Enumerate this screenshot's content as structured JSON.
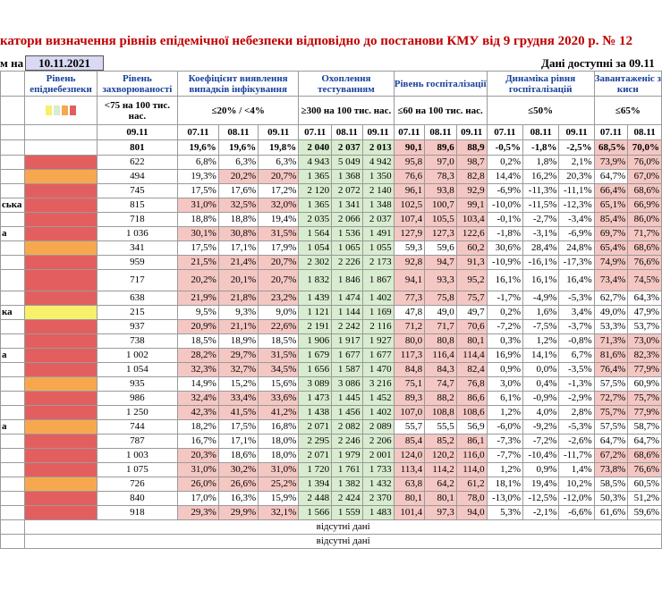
{
  "title": "катори визначення рівнів епідемічної небезпеки відповідно до постанови КМУ від 9 грудня 2020 р. № 12",
  "asof_label": "м на",
  "asof_date": "10.11.2021",
  "available_label": "Дані доступні за  09.11",
  "headers": {
    "level": "Рівень епіднебезпеки",
    "incidence": "Рівень захворюваності",
    "detection": "Коефіцієнт виявлення випадків інфікування",
    "testing": "Охоплення тестуванням",
    "hospital": "Рівень госпіталізації",
    "dynamics": "Динаміка рівня госпіталізацій",
    "load": "Завантаженіс з кисн"
  },
  "criteria": {
    "incidence": "<75 на 100 тис. нас.",
    "detection": "≤20% / <4%",
    "testing": "≥300 на 100 тис. нас.",
    "hospital": "≤60 на 100 тис. нас.",
    "dynamics": "≤50%",
    "load": "≤65%"
  },
  "dates": {
    "incidence": [
      "09.11"
    ],
    "detection": [
      "07.11",
      "08.11",
      "09.11"
    ],
    "testing": [
      "07.11",
      "08.11",
      "09.11"
    ],
    "hospital": [
      "07.11",
      "08.11",
      "09.11"
    ],
    "dynamics": [
      "07.11",
      "08.11",
      "09.11"
    ],
    "load": [
      "07.11",
      "08.11"
    ]
  },
  "colors": {
    "red": "#e35f5f",
    "orange": "#f7a84f",
    "yellow": "#f6f06a",
    "green": "#d8eccf",
    "pink": "#f4c7c3",
    "title": "#c00000",
    "header": "#17409a"
  },
  "legend_colors": [
    "yellow",
    "green",
    "orange",
    "red"
  ],
  "summary": {
    "inc": "801",
    "det": [
      "19,6%",
      "19,6%",
      "19,8%"
    ],
    "tst": [
      "2 040",
      "2 037",
      "2 013"
    ],
    "hos": [
      "90,1",
      "89,6",
      "88,9"
    ],
    "dyn": [
      "-0,5%",
      "-1,8%",
      "-2,5%"
    ],
    "lod": [
      "68,5%",
      "70,0%"
    ]
  },
  "rows": [
    {
      "name": "",
      "lvl": "red",
      "inc": "622",
      "det": [
        "6,8%",
        "6,3%",
        "6,3%"
      ],
      "tst": [
        "4 943",
        "5 049",
        "4 942"
      ],
      "hos": [
        "95,8",
        "97,0",
        "98,7"
      ],
      "dyn": [
        "0,2%",
        "1,8%",
        "2,1%"
      ],
      "lod": [
        "73,9%",
        "76,0%"
      ]
    },
    {
      "name": "",
      "lvl": "orange",
      "inc": "494",
      "det": [
        "19,3%",
        "20,2%",
        "20,7%"
      ],
      "tst": [
        "1 365",
        "1 368",
        "1 350"
      ],
      "hos": [
        "76,6",
        "78,3",
        "82,8"
      ],
      "dyn": [
        "14,4%",
        "16,2%",
        "20,3%"
      ],
      "lod": [
        "64,7%",
        "67,0%"
      ]
    },
    {
      "name": "",
      "lvl": "red",
      "inc": "745",
      "det": [
        "17,5%",
        "17,6%",
        "17,2%"
      ],
      "tst": [
        "2 120",
        "2 072",
        "2 140"
      ],
      "hos": [
        "96,1",
        "93,8",
        "92,9"
      ],
      "dyn": [
        "-6,9%",
        "-11,3%",
        "-11,1%"
      ],
      "lod": [
        "66,4%",
        "68,6%"
      ]
    },
    {
      "name": "ська",
      "lvl": "red",
      "inc": "815",
      "det": [
        "31,0%",
        "32,5%",
        "32,0%"
      ],
      "tst": [
        "1 365",
        "1 341",
        "1 348"
      ],
      "hos": [
        "102,5",
        "100,7",
        "99,1"
      ],
      "dyn": [
        "-10,0%",
        "-11,5%",
        "-12,3%"
      ],
      "lod": [
        "65,1%",
        "66,9%"
      ]
    },
    {
      "name": "",
      "lvl": "red",
      "inc": "718",
      "det": [
        "18,8%",
        "18,8%",
        "19,4%"
      ],
      "tst": [
        "2 035",
        "2 066",
        "2 037"
      ],
      "hos": [
        "107,4",
        "105,5",
        "103,4"
      ],
      "dyn": [
        "-0,1%",
        "-2,7%",
        "-3,4%"
      ],
      "lod": [
        "85,4%",
        "86,0%"
      ]
    },
    {
      "name": "а",
      "lvl": "red",
      "inc": "1 036",
      "det": [
        "30,1%",
        "30,8%",
        "31,5%"
      ],
      "tst": [
        "1 564",
        "1 536",
        "1 491"
      ],
      "hos": [
        "127,9",
        "127,3",
        "122,6"
      ],
      "dyn": [
        "-1,8%",
        "-3,1%",
        "-6,9%"
      ],
      "lod": [
        "69,7%",
        "71,7%"
      ]
    },
    {
      "name": "",
      "lvl": "orange",
      "inc": "341",
      "det": [
        "17,5%",
        "17,1%",
        "17,9%"
      ],
      "tst": [
        "1 054",
        "1 065",
        "1 055"
      ],
      "hos": [
        "59,3",
        "59,6",
        "60,2"
      ],
      "dyn": [
        "30,6%",
        "28,4%",
        "24,8%"
      ],
      "lod": [
        "65,4%",
        "68,6%"
      ]
    },
    {
      "name": "",
      "lvl": "red",
      "inc": "959",
      "det": [
        "21,5%",
        "21,4%",
        "20,7%"
      ],
      "tst": [
        "2 302",
        "2 226",
        "2 173"
      ],
      "hos": [
        "92,8",
        "94,7",
        "91,3"
      ],
      "dyn": [
        "-10,9%",
        "-16,1%",
        "-17,3%"
      ],
      "lod": [
        "74,9%",
        "76,6%"
      ]
    },
    {
      "name": "",
      "lvl": "red",
      "inc": "717",
      "det": [
        "20,2%",
        "20,1%",
        "20,7%"
      ],
      "tst": [
        "1 832",
        "1 846",
        "1 867"
      ],
      "hos": [
        "94,1",
        "93,3",
        "95,2"
      ],
      "dyn": [
        "16,1%",
        "16,1%",
        "16,4%"
      ],
      "lod": [
        "73,4%",
        "74,5%"
      ],
      "tall": true
    },
    {
      "name": "",
      "lvl": "red",
      "inc": "638",
      "det": [
        "21,9%",
        "21,8%",
        "23,2%"
      ],
      "tst": [
        "1 439",
        "1 474",
        "1 402"
      ],
      "hos": [
        "77,3",
        "75,8",
        "75,7"
      ],
      "dyn": [
        "-1,7%",
        "-4,9%",
        "-5,3%"
      ],
      "lod": [
        "62,7%",
        "64,3%"
      ]
    },
    {
      "name": "ка",
      "lvl": "yellow",
      "inc": "215",
      "det": [
        "9,5%",
        "9,3%",
        "9,0%"
      ],
      "tst": [
        "1 121",
        "1 144",
        "1 169"
      ],
      "hos": [
        "47,8",
        "49,0",
        "49,7"
      ],
      "dyn": [
        "0,2%",
        "1,6%",
        "3,4%"
      ],
      "lod": [
        "49,0%",
        "47,9%"
      ]
    },
    {
      "name": "",
      "lvl": "red",
      "inc": "937",
      "det": [
        "20,9%",
        "21,1%",
        "22,6%"
      ],
      "tst": [
        "2 191",
        "2 242",
        "2 116"
      ],
      "hos": [
        "71,2",
        "71,7",
        "70,6"
      ],
      "dyn": [
        "-7,2%",
        "-7,5%",
        "-3,7%"
      ],
      "lod": [
        "53,3%",
        "53,7%"
      ]
    },
    {
      "name": "",
      "lvl": "red",
      "inc": "738",
      "det": [
        "18,5%",
        "18,9%",
        "18,5%"
      ],
      "tst": [
        "1 906",
        "1 917",
        "1 927"
      ],
      "hos": [
        "80,0",
        "80,8",
        "80,1"
      ],
      "dyn": [
        "0,3%",
        "1,2%",
        "-0,8%"
      ],
      "lod": [
        "71,3%",
        "73,0%"
      ]
    },
    {
      "name": "а",
      "lvl": "red",
      "inc": "1 002",
      "det": [
        "28,2%",
        "29,7%",
        "31,5%"
      ],
      "tst": [
        "1 679",
        "1 677",
        "1 677"
      ],
      "hos": [
        "117,3",
        "116,4",
        "114,4"
      ],
      "dyn": [
        "16,9%",
        "14,1%",
        "6,7%"
      ],
      "lod": [
        "81,6%",
        "82,3%"
      ]
    },
    {
      "name": "",
      "lvl": "red",
      "inc": "1 054",
      "det": [
        "32,3%",
        "32,7%",
        "34,5%"
      ],
      "tst": [
        "1 656",
        "1 587",
        "1 470"
      ],
      "hos": [
        "84,8",
        "84,3",
        "82,4"
      ],
      "dyn": [
        "0,9%",
        "0,0%",
        "-3,5%"
      ],
      "lod": [
        "76,4%",
        "77,9%"
      ]
    },
    {
      "name": "",
      "lvl": "orange",
      "inc": "935",
      "det": [
        "14,9%",
        "15,2%",
        "15,6%"
      ],
      "tst": [
        "3 089",
        "3 086",
        "3 216"
      ],
      "hos": [
        "75,1",
        "74,7",
        "76,8"
      ],
      "dyn": [
        "3,0%",
        "0,4%",
        "-1,3%"
      ],
      "lod": [
        "57,5%",
        "60,9%"
      ]
    },
    {
      "name": "",
      "lvl": "red",
      "inc": "986",
      "det": [
        "32,4%",
        "33,4%",
        "33,6%"
      ],
      "tst": [
        "1 473",
        "1 445",
        "1 452"
      ],
      "hos": [
        "89,3",
        "88,2",
        "86,6"
      ],
      "dyn": [
        "6,1%",
        "-0,9%",
        "-2,9%"
      ],
      "lod": [
        "72,7%",
        "75,7%"
      ]
    },
    {
      "name": "",
      "lvl": "red",
      "inc": "1 250",
      "det": [
        "42,3%",
        "41,5%",
        "41,2%"
      ],
      "tst": [
        "1 438",
        "1 456",
        "1 402"
      ],
      "hos": [
        "107,0",
        "108,8",
        "108,6"
      ],
      "dyn": [
        "1,2%",
        "4,0%",
        "2,8%"
      ],
      "lod": [
        "75,7%",
        "77,9%"
      ]
    },
    {
      "name": "а",
      "lvl": "orange",
      "inc": "744",
      "det": [
        "18,2%",
        "17,5%",
        "16,8%"
      ],
      "tst": [
        "2 071",
        "2 082",
        "2 089"
      ],
      "hos": [
        "55,7",
        "55,5",
        "56,9"
      ],
      "dyn": [
        "-6,0%",
        "-9,2%",
        "-5,3%"
      ],
      "lod": [
        "57,5%",
        "58,7%"
      ]
    },
    {
      "name": "",
      "lvl": "red",
      "inc": "787",
      "det": [
        "16,7%",
        "17,1%",
        "18,0%"
      ],
      "tst": [
        "2 295",
        "2 246",
        "2 206"
      ],
      "hos": [
        "85,4",
        "85,2",
        "86,1"
      ],
      "dyn": [
        "-7,3%",
        "-7,2%",
        "-2,6%"
      ],
      "lod": [
        "64,7%",
        "64,7%"
      ]
    },
    {
      "name": "",
      "lvl": "red",
      "inc": "1 003",
      "det": [
        "20,3%",
        "18,6%",
        "18,0%"
      ],
      "tst": [
        "2 071",
        "1 979",
        "2 001"
      ],
      "hos": [
        "124,0",
        "120,2",
        "116,0"
      ],
      "dyn": [
        "-7,7%",
        "-10,4%",
        "-11,7%"
      ],
      "lod": [
        "67,2%",
        "68,6%"
      ]
    },
    {
      "name": "",
      "lvl": "red",
      "inc": "1 075",
      "det": [
        "31,0%",
        "30,2%",
        "31,0%"
      ],
      "tst": [
        "1 720",
        "1 761",
        "1 733"
      ],
      "hos": [
        "113,4",
        "114,2",
        "114,0"
      ],
      "dyn": [
        "1,2%",
        "0,9%",
        "1,4%"
      ],
      "lod": [
        "73,8%",
        "76,6%"
      ]
    },
    {
      "name": "",
      "lvl": "orange",
      "inc": "726",
      "det": [
        "26,0%",
        "26,6%",
        "25,2%"
      ],
      "tst": [
        "1 394",
        "1 382",
        "1 432"
      ],
      "hos": [
        "63,8",
        "64,2",
        "61,2"
      ],
      "dyn": [
        "18,1%",
        "19,4%",
        "10,2%"
      ],
      "lod": [
        "58,5%",
        "60,5%"
      ]
    },
    {
      "name": "",
      "lvl": "red",
      "inc": "840",
      "det": [
        "17,0%",
        "16,3%",
        "15,9%"
      ],
      "tst": [
        "2 448",
        "2 424",
        "2 370"
      ],
      "hos": [
        "80,1",
        "80,1",
        "78,0"
      ],
      "dyn": [
        "-13,0%",
        "-12,5%",
        "-12,0%"
      ],
      "lod": [
        "50,3%",
        "51,2%"
      ]
    },
    {
      "name": "",
      "lvl": "red",
      "inc": "918",
      "det": [
        "29,3%",
        "29,9%",
        "32,1%"
      ],
      "tst": [
        "1 566",
        "1 559",
        "1 483"
      ],
      "hos": [
        "101,4",
        "97,3",
        "94,0"
      ],
      "dyn": [
        "5,3%",
        "-2,1%",
        "-6,6%"
      ],
      "lod": [
        "61,6%",
        "59,6%"
      ]
    }
  ],
  "no_data_rows": [
    "відсутні дані",
    "відсутні дані"
  ]
}
